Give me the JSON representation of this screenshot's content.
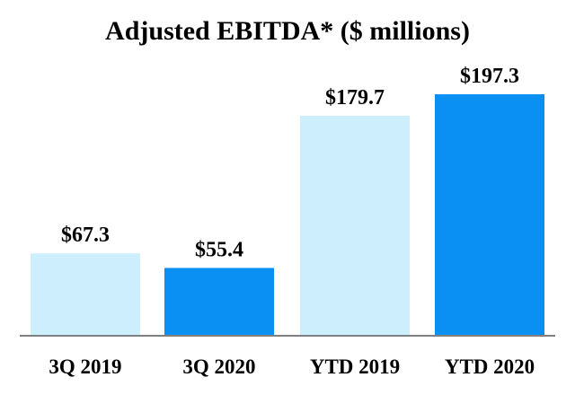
{
  "chart_data": {
    "type": "bar",
    "title": "Adjusted EBITDA* ($ millions)",
    "categories": [
      "3Q 2019",
      "3Q 2020",
      "YTD 2019",
      "YTD 2020"
    ],
    "values": [
      67.3,
      55.4,
      179.7,
      197.3
    ],
    "data_labels": [
      "$67.3",
      "$55.4",
      "$179.7",
      "$197.3"
    ],
    "bar_colors": [
      "#cdeefc",
      "#0a8ff2",
      "#cdeefc",
      "#0a8ff2"
    ],
    "axis_color": "#7f7f7f",
    "ylim": [
      0,
      197.3
    ],
    "grid": false,
    "legend": "none"
  }
}
